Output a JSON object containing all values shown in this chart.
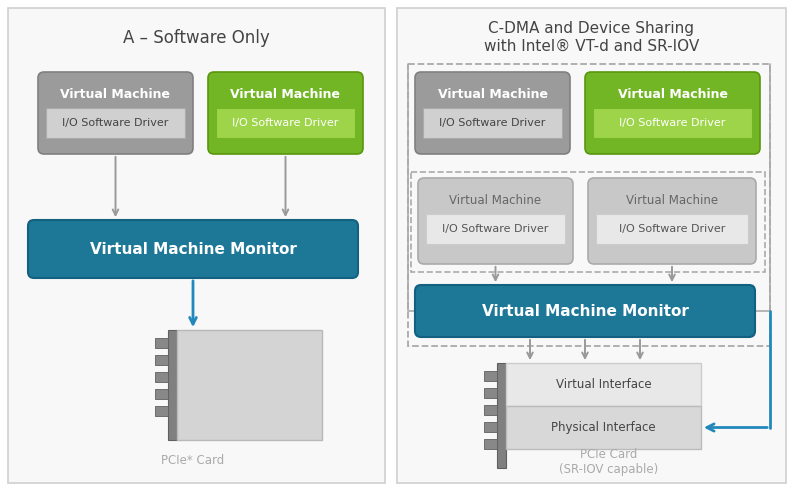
{
  "bg_color": "#ffffff",
  "gray_vm_color": "#9b9b9b",
  "gray_vm_light": "#d0d0d0",
  "green_vm_color": "#72b626",
  "green_vm_light": "#9ed44a",
  "blue_vmm_color": "#1d7898",
  "light_gray_vm": "#c8c8c8",
  "light_gray_io": "#dcdcdc",
  "pcie_bar_color": "#888888",
  "pcie_body_color": "#d4d4d4",
  "vi_color": "#e0e0e0",
  "pi_color": "#d0d0d0",
  "panel_bg": "#f8f8f8",
  "panel_border": "#d0d0d0",
  "dashed_color": "#aaaaaa",
  "arrow_gray": "#999999",
  "arrow_blue": "#2288bb",
  "text_white": "#ffffff",
  "text_dark": "#555555",
  "text_label_gray": "#aaaaaa",
  "left_title": "A – Software Only",
  "right_title_l1": "C-DMA and Device Sharing",
  "right_title_l2": "with Intel® VT-d and SR-IOV",
  "vm_label": "Virtual Machine",
  "io_label": "I/O Software Driver",
  "vmm_label": "Virtual Machine Monitor",
  "vi_label": "Virtual Interface",
  "pi_label": "Physical Interface",
  "pcie_label1": "PCIe* Card",
  "pcie_label2": "PCIe Card\n(SR-IOV capable)"
}
